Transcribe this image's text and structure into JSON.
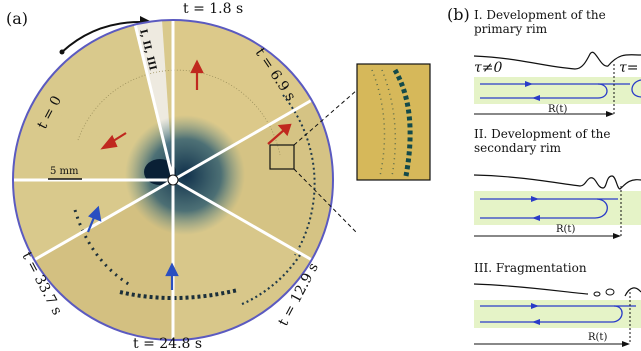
{
  "panel_a": {
    "label": "(a)",
    "times": {
      "t0": "t = 0",
      "t1": "t = 1.8 s",
      "t2": "t = 6.9 s",
      "t3": "t = 12.9 s",
      "t4": "t = 24.8 s",
      "t5": "t = 33.7 s"
    },
    "stage_marker": "I, II, III",
    "scale_bar": "5 mm"
  },
  "panel_b": {
    "label": "(b)",
    "stage1": {
      "title_line1": "I. Development of the",
      "title_line2": "primary rim",
      "tau_left": "τ≠0",
      "tau_right": "τ=",
      "r_label": "R(t)"
    },
    "stage2": {
      "title_line1": "II. Development of the",
      "title_line2": "secondary rim",
      "r_label": "R(t)"
    },
    "stage3": {
      "title_line1": "III. Fragmentation",
      "r_label": "R(t)"
    }
  },
  "colors": {
    "film": "#d8c98a",
    "dark_film": "#b9a760",
    "dye": "#1b3c55",
    "arrow_red": "#c0281f",
    "arrow_blue": "#2a4fc0",
    "liquid": "#e5f3c7",
    "flow_line": "#2a3bc8"
  }
}
